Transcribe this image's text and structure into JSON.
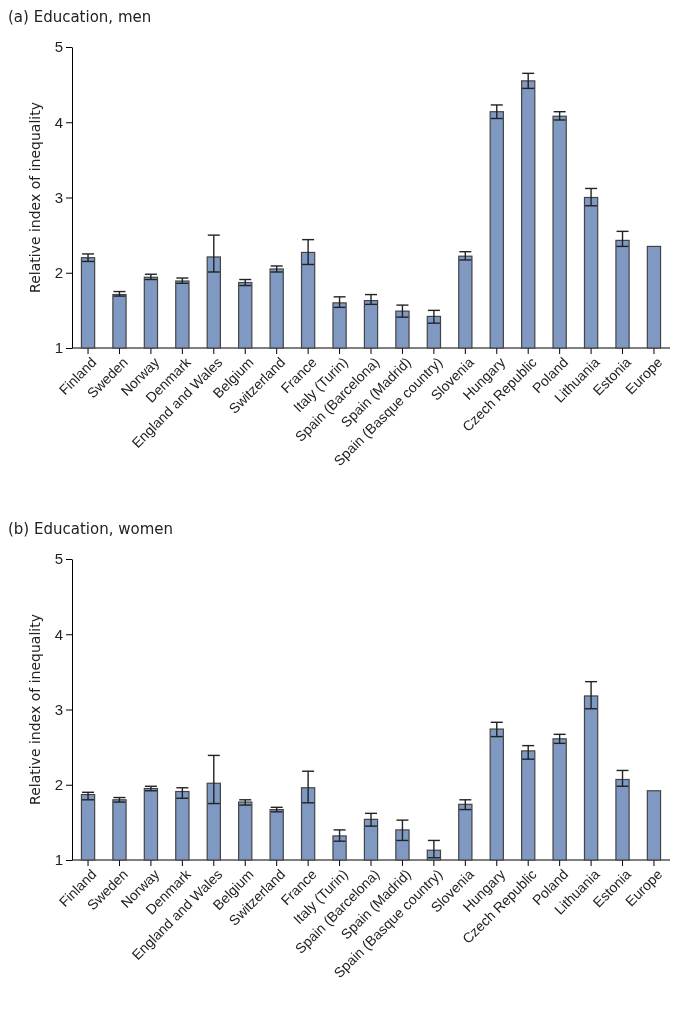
{
  "chart_data": [
    {
      "type": "bar",
      "title": "(a)  Education, men",
      "ylabel": "Relative index of inequality",
      "categories": [
        "Finland",
        "Sweden",
        "Norway",
        "Denmark",
        "England and Wales",
        "Belgium",
        "Switzerland",
        "France",
        "Italy (Turin)",
        "Spain (Barcelona)",
        "Spain (Madrid)",
        "Spain (Basque country)",
        "Slovenia",
        "Hungary",
        "Czech Republic",
        "Poland",
        "Lithuania",
        "Estonia",
        "Europe"
      ],
      "values": [
        2.2,
        1.71,
        1.94,
        1.89,
        2.21,
        1.87,
        2.05,
        2.27,
        1.6,
        1.63,
        1.49,
        1.42,
        2.22,
        4.14,
        4.55,
        4.08,
        3.0,
        2.43,
        2.35
      ],
      "errors": [
        [
          2.15,
          2.25
        ],
        [
          1.69,
          1.75
        ],
        [
          1.91,
          1.98
        ],
        [
          1.86,
          1.93
        ],
        [
          2.01,
          2.5
        ],
        [
          1.83,
          1.91
        ],
        [
          2.01,
          2.09
        ],
        [
          2.11,
          2.44
        ],
        [
          1.54,
          1.68
        ],
        [
          1.58,
          1.71
        ],
        [
          1.41,
          1.57
        ],
        [
          1.33,
          1.5
        ],
        [
          2.17,
          2.28
        ],
        [
          4.05,
          4.23
        ],
        [
          4.45,
          4.65
        ],
        [
          4.03,
          4.14
        ],
        [
          2.89,
          3.12
        ],
        [
          2.35,
          2.55
        ],
        null
      ],
      "color": "#7f99c2",
      "ylim": [
        1,
        5
      ],
      "yticks": [
        1,
        2,
        3,
        4,
        5
      ],
      "grid": false
    },
    {
      "type": "bar",
      "title": "(b)  Education, women",
      "ylabel": "Relative index of inequality",
      "categories": [
        "Finland",
        "Sweden",
        "Norway",
        "Denmark",
        "England and Wales",
        "Belgium",
        "Switzerland",
        "France",
        "Italy (Turin)",
        "Spain (Barcelona)",
        "Spain (Madrid)",
        "Spain (Basque country)",
        "Slovenia",
        "Hungary",
        "Czech Republic",
        "Poland",
        "Lithuania",
        "Estonia",
        "Europe"
      ],
      "values": [
        1.87,
        1.8,
        1.95,
        1.91,
        2.02,
        1.77,
        1.67,
        1.96,
        1.32,
        1.54,
        1.4,
        1.13,
        1.74,
        2.74,
        2.45,
        2.61,
        3.18,
        2.07,
        1.92
      ],
      "errors": [
        [
          1.8,
          1.9
        ],
        [
          1.77,
          1.83
        ],
        [
          1.92,
          1.98
        ],
        [
          1.82,
          1.96
        ],
        [
          1.75,
          2.39
        ],
        [
          1.73,
          1.8
        ],
        [
          1.64,
          1.7
        ],
        [
          1.76,
          2.18
        ],
        [
          1.25,
          1.4
        ],
        [
          1.45,
          1.62
        ],
        [
          1.26,
          1.53
        ],
        [
          1.03,
          1.26
        ],
        [
          1.67,
          1.8
        ],
        [
          2.64,
          2.83
        ],
        [
          2.34,
          2.52
        ],
        [
          2.55,
          2.67
        ],
        [
          3.01,
          3.37
        ],
        [
          1.98,
          2.19
        ],
        null
      ],
      "color": "#7f99c2",
      "ylim": [
        1,
        5
      ],
      "yticks": [
        1,
        2,
        3,
        4,
        5
      ],
      "grid": false
    }
  ]
}
